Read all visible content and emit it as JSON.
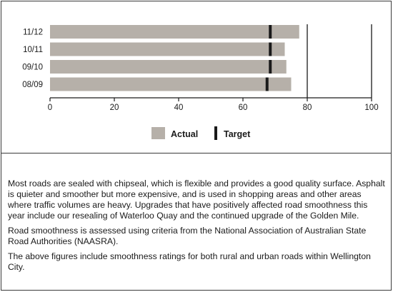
{
  "chart_data": {
    "type": "bar",
    "orientation": "horizontal",
    "categories": [
      "11/12",
      "10/11",
      "09/10",
      "08/09"
    ],
    "series": [
      {
        "name": "Actual",
        "values": [
          77.5,
          73,
          73.5,
          75
        ],
        "color": "#b6b0a9"
      },
      {
        "name": "Target",
        "values": [
          68.5,
          68.5,
          68.5,
          67.5
        ],
        "color": "#1a1a1a",
        "marker": "tick"
      }
    ],
    "xlim": [
      0,
      100
    ],
    "xticks": [
      0,
      20,
      40,
      60,
      80,
      100
    ],
    "reference_lines": [
      80,
      100
    ],
    "legend_position": "bottom"
  },
  "notes": [
    "Most roads are sealed with chipseal, which is flexible and provides a good quality surface. Asphalt is quieter and smoother but more expensive, and is used in shopping areas and other areas where traffic volumes are heavy. Upgrades that have positively affected road smoothness this year include our resealing of Waterloo Quay and the continued upgrade of the Golden Mile.",
    "Road smoothness is assessed using criteria from the National Association of Australian State Road Authorities (NAASRA).",
    "The above figures include smoothness ratings for both rural and urban roads within Wellington City."
  ]
}
